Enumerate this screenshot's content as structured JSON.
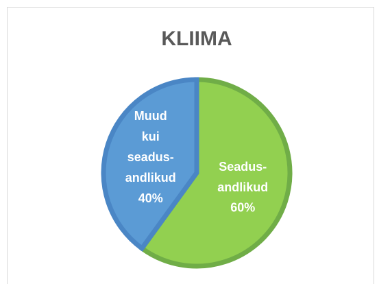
{
  "chart_data": {
    "type": "pie",
    "title": "KLIIMA",
    "categories": [
      "Seadus-andlikud",
      "Muud kui seadus-andlikud"
    ],
    "values": [
      60,
      40
    ],
    "value_labels": [
      "60%",
      "40%"
    ],
    "colors": [
      "#92d050",
      "#5b9bd5"
    ],
    "border_colors": [
      "#70ad47",
      "#4a86c5"
    ]
  }
}
